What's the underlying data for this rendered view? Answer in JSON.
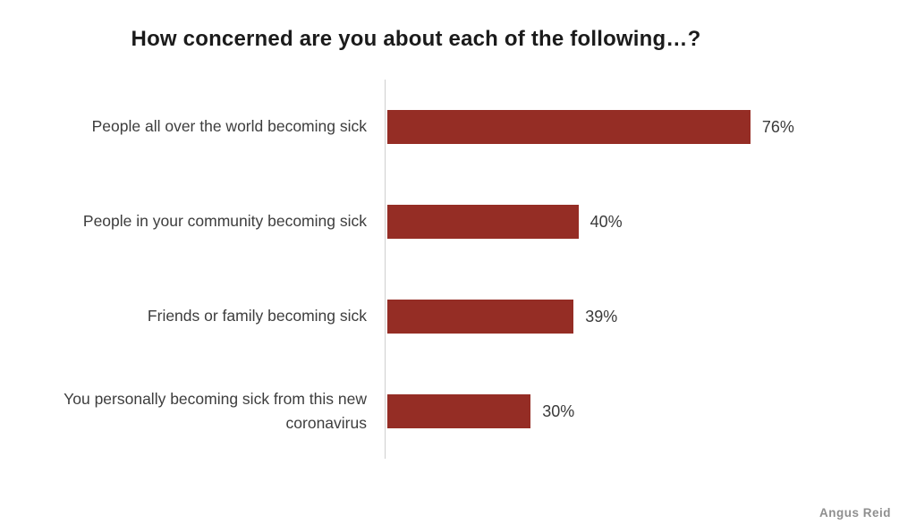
{
  "chart_data": {
    "type": "bar",
    "orientation": "horizontal",
    "title": "How concerned are you about each of the following…?",
    "categories": [
      "People all over the world becoming sick",
      "People in your community becoming sick",
      "Friends or family becoming sick",
      "You personally becoming sick from this new coronavirus"
    ],
    "values": [
      76,
      40,
      39,
      30
    ],
    "value_labels": [
      "76%",
      "40%",
      "39%",
      "30%"
    ],
    "xlim": [
      0,
      100
    ],
    "grid": false,
    "legend": "none",
    "bar_color": "#952d25",
    "axis_line_color": "#cfcfcf"
  },
  "source": {
    "credit": "Angus Reid"
  }
}
